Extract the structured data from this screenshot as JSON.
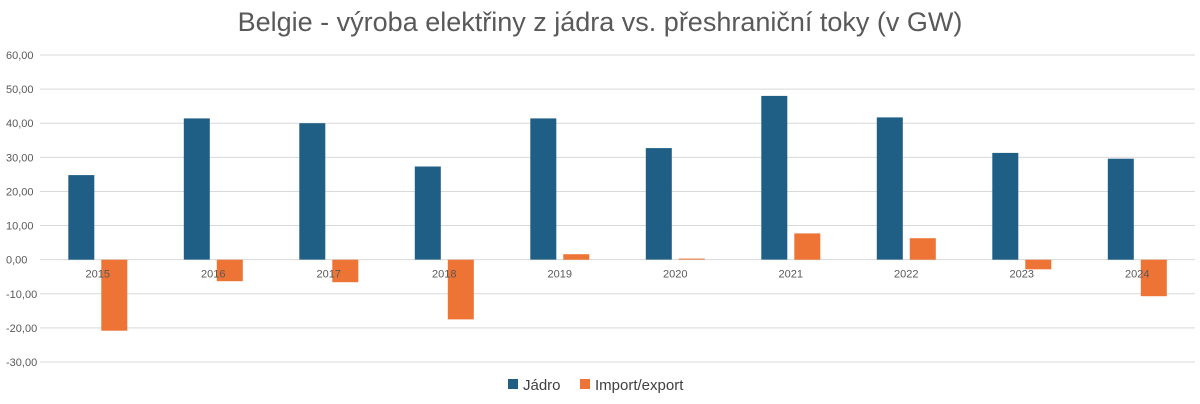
{
  "chart_data": {
    "type": "bar",
    "title": "Belgie - výroba elektřiny z jádra vs. přeshraniční toky (v GW)",
    "categories": [
      "2015",
      "2016",
      "2017",
      "2018",
      "2019",
      "2020",
      "2021",
      "2022",
      "2023",
      "2024"
    ],
    "series": [
      {
        "name": "Jádro",
        "color": "#1f5f86",
        "values": [
          24.8,
          41.4,
          40.0,
          27.3,
          41.4,
          32.7,
          48.0,
          41.7,
          31.3,
          29.6
        ]
      },
      {
        "name": "Import/export",
        "color": "#ed7434",
        "values": [
          -20.8,
          -6.3,
          -6.6,
          -17.5,
          1.6,
          0.3,
          7.7,
          6.3,
          -2.8,
          -10.7
        ]
      }
    ],
    "ylim": [
      -30,
      60
    ],
    "yticks": [
      "60,00",
      "50,00",
      "40,00",
      "30,00",
      "20,00",
      "10,00",
      "0,00",
      "-10,00",
      "-20,00",
      "-30,00"
    ],
    "ytick_values": [
      60,
      50,
      40,
      30,
      20,
      10,
      0,
      -10,
      -20,
      -30
    ],
    "grid": true,
    "legend_position": "bottom",
    "xlabel": "",
    "ylabel": ""
  }
}
